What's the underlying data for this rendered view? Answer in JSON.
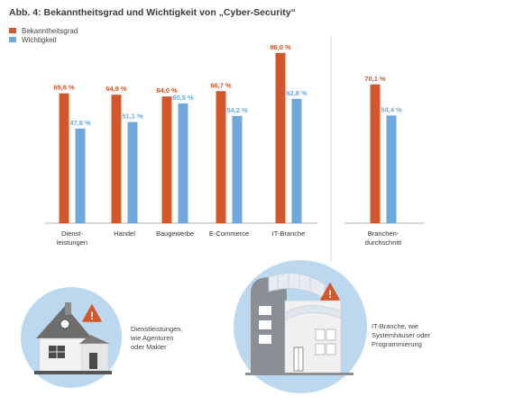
{
  "title": "Abb. 4: Bekanntheitsgrad und Wichtigkeit von „Cyber-Security“",
  "colors": {
    "orange": "#d3572b",
    "blue": "#6fa8dc",
    "circle": "#bcd8ee"
  },
  "chart_data": {
    "type": "bar",
    "title": "Abb. 4: Bekanntheitsgrad und Wichtigkeit von „Cyber-Security“",
    "categories": [
      [
        "Dienst-",
        "leistungen"
      ],
      [
        "Handel"
      ],
      [
        "Baugewerbe"
      ],
      [
        "E-Commerce"
      ],
      [
        "IT-Branche"
      ],
      [
        "Branchen-",
        "durchschnitt"
      ]
    ],
    "series": [
      {
        "name": "Bekanntheitsgrad",
        "color": "#d3572b",
        "values": [
          65.6,
          64.9,
          64.0,
          66.7,
          86.0,
          70.1
        ],
        "labels": [
          "65,6 %",
          "64,9 %",
          "64,0 %",
          "66,7 %",
          "86,0 %",
          "70,1 %"
        ]
      },
      {
        "name": "Wichtigkeit",
        "color": "#6fa8dc",
        "values": [
          47.8,
          51.1,
          60.5,
          54.2,
          62.8,
          54.4
        ],
        "labels": [
          "47,8 %",
          "51,1 %",
          "60,5 %",
          "54,2 %",
          "62,8 %",
          "54,4 %"
        ]
      }
    ],
    "ylim": [
      0,
      90
    ],
    "legend": "top-left",
    "grid": false
  },
  "illustrations": {
    "left_caption": [
      "Dienstleistungen,",
      "wie Agenturen",
      "oder Makler"
    ],
    "right_caption": [
      "IT-Branche, wie",
      "Systemhäuser oder",
      "Programmierung"
    ],
    "warning_symbol": "!"
  }
}
